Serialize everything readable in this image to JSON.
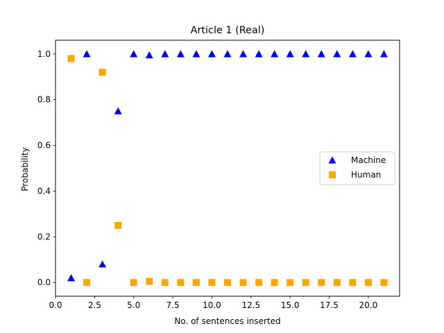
{
  "chart_data": {
    "type": "scatter",
    "title": "Article 1 (Real)",
    "xlabel": "No. of sentences inserted",
    "ylabel": "Probability",
    "xlim": [
      0,
      22
    ],
    "ylim": [
      -0.06,
      1.06
    ],
    "xticks": [
      0.0,
      2.5,
      5.0,
      7.5,
      10.0,
      12.5,
      15.0,
      17.5,
      20.0
    ],
    "xtick_labels": [
      "0.0",
      "2.5",
      "5.0",
      "7.5",
      "10.0",
      "12.5",
      "15.0",
      "17.5",
      "20.0"
    ],
    "yticks": [
      0.0,
      0.2,
      0.4,
      0.6,
      0.8,
      1.0
    ],
    "ytick_labels": [
      "0.0",
      "0.2",
      "0.4",
      "0.6",
      "0.8",
      "1.0"
    ],
    "grid": false,
    "legend_position": "center-right",
    "series": [
      {
        "name": "Machine",
        "marker": "triangle",
        "color": "#0000ff",
        "x": [
          1,
          2,
          3,
          4,
          5,
          6,
          7,
          8,
          9,
          10,
          11,
          12,
          13,
          14,
          15,
          16,
          17,
          18,
          19,
          20,
          21
        ],
        "y": [
          0.02,
          1.0,
          0.08,
          0.75,
          1.0,
          0.995,
          1.0,
          1.0,
          1.0,
          1.0,
          1.0,
          1.0,
          1.0,
          1.0,
          1.0,
          1.0,
          1.0,
          1.0,
          1.0,
          1.0,
          1.0
        ]
      },
      {
        "name": "Human",
        "marker": "square",
        "color": "#ffa500",
        "x": [
          1,
          2,
          3,
          4,
          5,
          6,
          7,
          8,
          9,
          10,
          11,
          12,
          13,
          14,
          15,
          16,
          17,
          18,
          19,
          20,
          21
        ],
        "y": [
          0.98,
          0.0,
          0.92,
          0.25,
          0.0,
          0.005,
          0.0,
          0.0,
          0.0,
          0.0,
          0.0,
          0.0,
          0.0,
          0.0,
          0.0,
          0.0,
          0.0,
          0.0,
          0.0,
          0.0,
          0.0
        ]
      }
    ]
  }
}
